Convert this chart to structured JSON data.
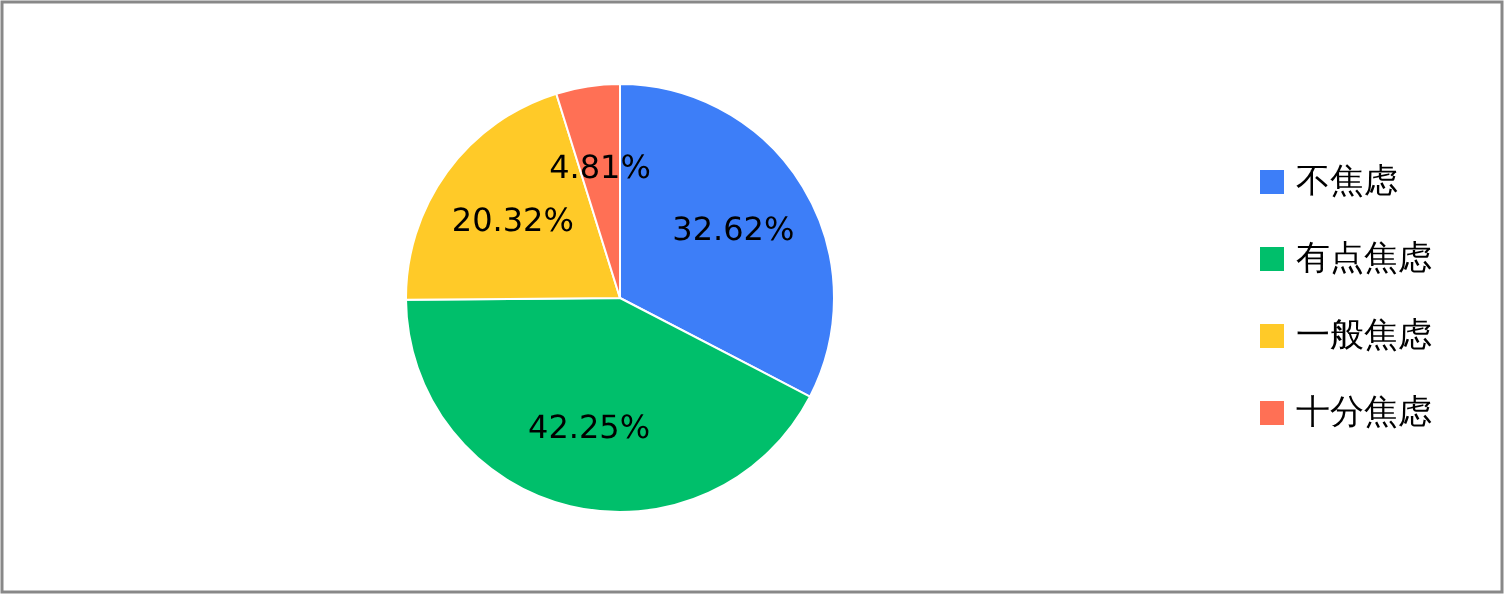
{
  "chart_data": {
    "type": "pie",
    "categories": [
      "不焦虑",
      "有点焦虑",
      "一般焦虑",
      "十分焦虑"
    ],
    "values": [
      32.62,
      42.25,
      20.32,
      4.81
    ],
    "colors": [
      "#3d7ef8",
      "#00bf6b",
      "#ffca28",
      "#ff7055"
    ],
    "value_labels": [
      "32.62%",
      "42.25%",
      "20.32%",
      "4.81%"
    ],
    "legend": "right"
  }
}
